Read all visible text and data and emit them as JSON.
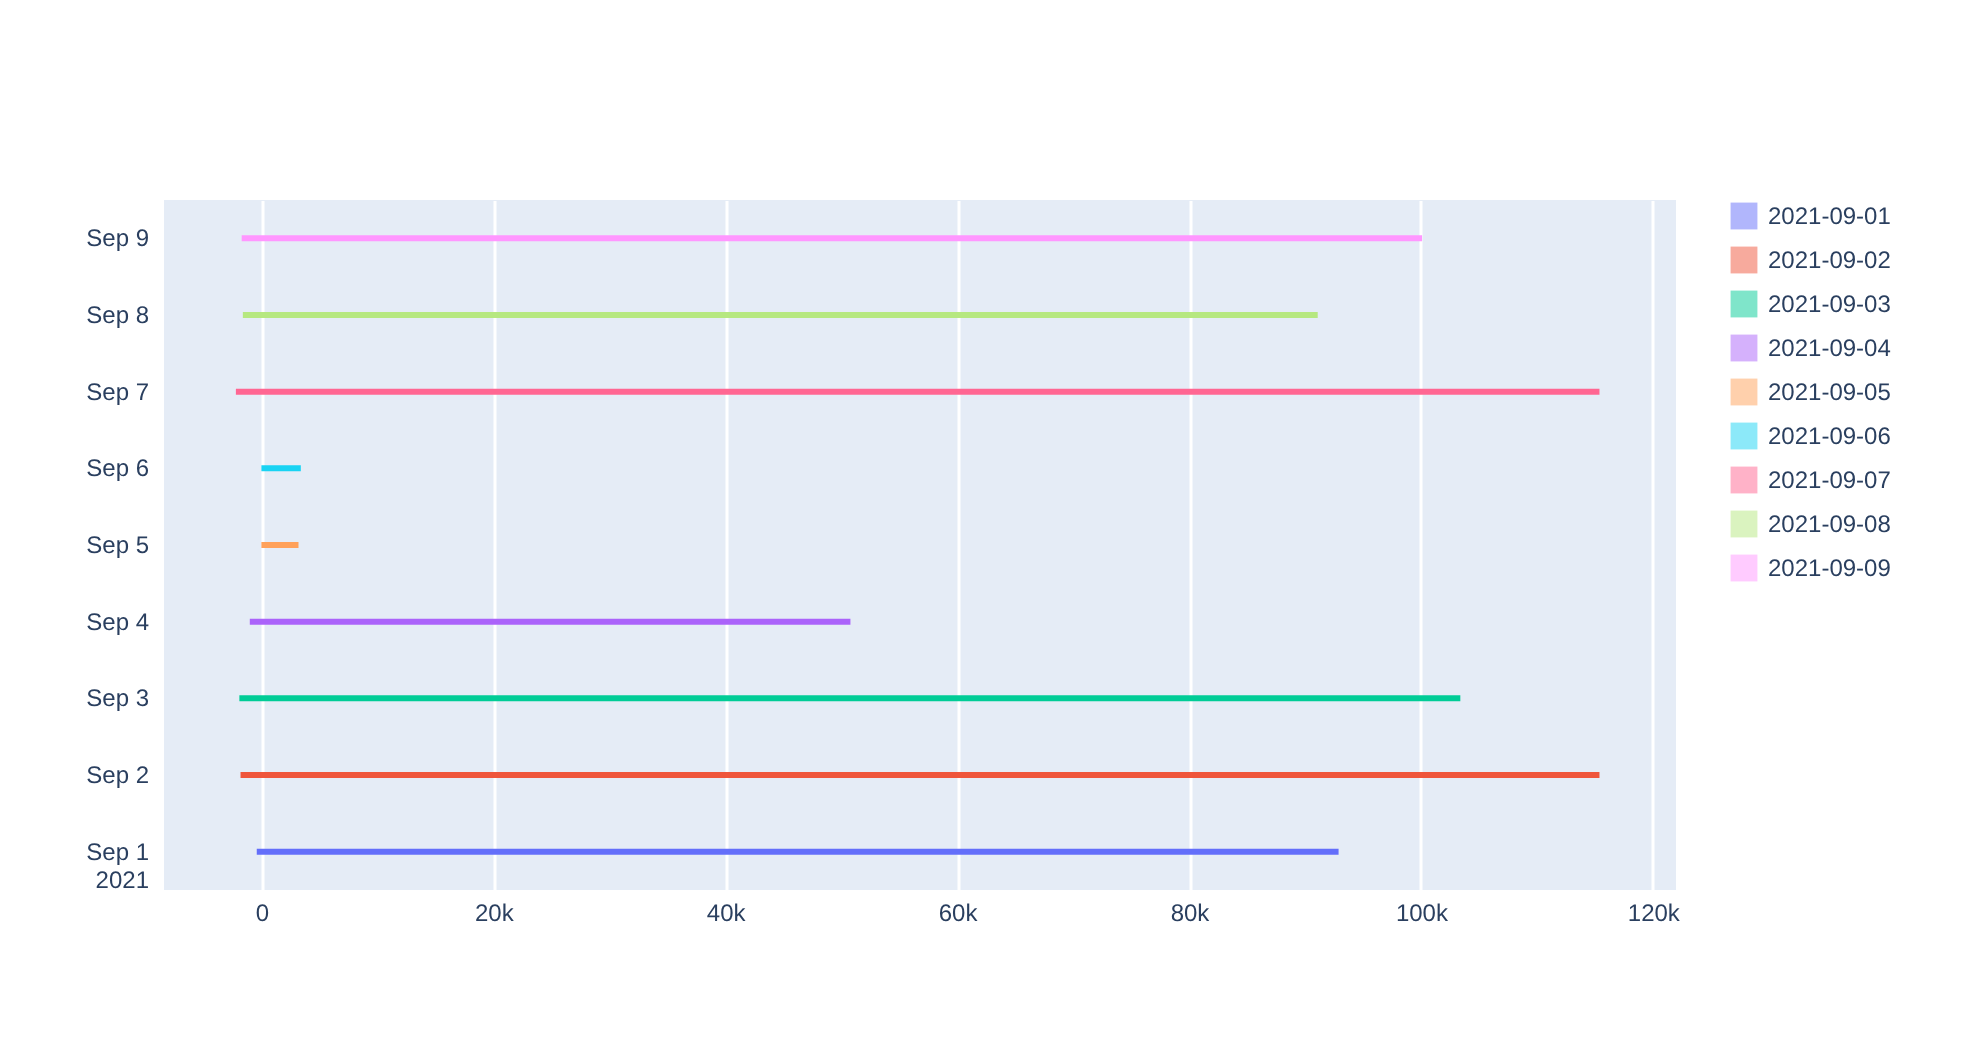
{
  "chart_data": {
    "type": "bar",
    "orientation": "horizontal",
    "categories": [
      "Sep 9",
      "Sep 8",
      "Sep 7",
      "Sep 6",
      "Sep 5",
      "Sep 4",
      "Sep 3",
      "Sep 2",
      "Sep 1\n2021"
    ],
    "series": [
      {
        "name": "2021-09-01",
        "color": "#636efa",
        "values": [
          null,
          null,
          null,
          null,
          null,
          null,
          null,
          null,
          93300
        ],
        "base": [
          null,
          null,
          null,
          null,
          null,
          null,
          null,
          null,
          -400
        ]
      },
      {
        "name": "2021-09-02",
        "color": "#ef553b",
        "values": [
          null,
          null,
          null,
          null,
          null,
          null,
          null,
          117200,
          null
        ],
        "base": [
          null,
          null,
          null,
          null,
          null,
          null,
          null,
          -1800,
          null
        ]
      },
      {
        "name": "2021-09-03",
        "color": "#00cc96",
        "values": [
          null,
          null,
          null,
          null,
          null,
          null,
          105300,
          null,
          null
        ],
        "base": [
          null,
          null,
          null,
          null,
          null,
          null,
          -1900,
          null,
          null
        ]
      },
      {
        "name": "2021-09-04",
        "color": "#ab63fa",
        "values": [
          null,
          null,
          null,
          null,
          null,
          51800,
          null,
          null,
          null
        ],
        "base": [
          null,
          null,
          null,
          null,
          null,
          -1000,
          null,
          null,
          null
        ]
      },
      {
        "name": "2021-09-05",
        "color": "#ffa15a",
        "values": [
          null,
          null,
          null,
          null,
          3200,
          null,
          null,
          null,
          null
        ],
        "base": [
          null,
          null,
          null,
          null,
          0,
          null,
          null,
          null,
          null
        ]
      },
      {
        "name": "2021-09-06",
        "color": "#19d3f3",
        "values": [
          null,
          null,
          null,
          3400,
          null,
          null,
          null,
          null,
          null
        ],
        "base": [
          null,
          null,
          null,
          0,
          null,
          null,
          null,
          null,
          null
        ]
      },
      {
        "name": "2021-09-07",
        "color": "#ff6692",
        "values": [
          null,
          null,
          117600,
          null,
          null,
          null,
          null,
          null,
          null
        ],
        "base": [
          null,
          null,
          -2200,
          null,
          null,
          null,
          null,
          null,
          null
        ]
      },
      {
        "name": "2021-09-08",
        "color": "#b6e880",
        "values": [
          null,
          92700,
          null,
          null,
          null,
          null,
          null,
          null,
          null
        ],
        "base": [
          null,
          -1600,
          null,
          null,
          null,
          null,
          null,
          null,
          null
        ]
      },
      {
        "name": "2021-09-09",
        "color": "#ff97ff",
        "values": [
          101800,
          null,
          null,
          null,
          null,
          null,
          null,
          null,
          null
        ],
        "base": [
          -1700,
          null,
          null,
          null,
          null,
          null,
          null,
          null,
          null
        ]
      }
    ],
    "xlim": [
      -8400,
      122000
    ],
    "xticks": [
      {
        "value": 0,
        "label": "0"
      },
      {
        "value": 20000,
        "label": "20k"
      },
      {
        "value": 40000,
        "label": "40k"
      },
      {
        "value": 60000,
        "label": "60k"
      },
      {
        "value": 80000,
        "label": "80k"
      },
      {
        "value": 100000,
        "label": "100k"
      },
      {
        "value": 120000,
        "label": "120k"
      }
    ],
    "grid": "x",
    "legend": "top right"
  }
}
